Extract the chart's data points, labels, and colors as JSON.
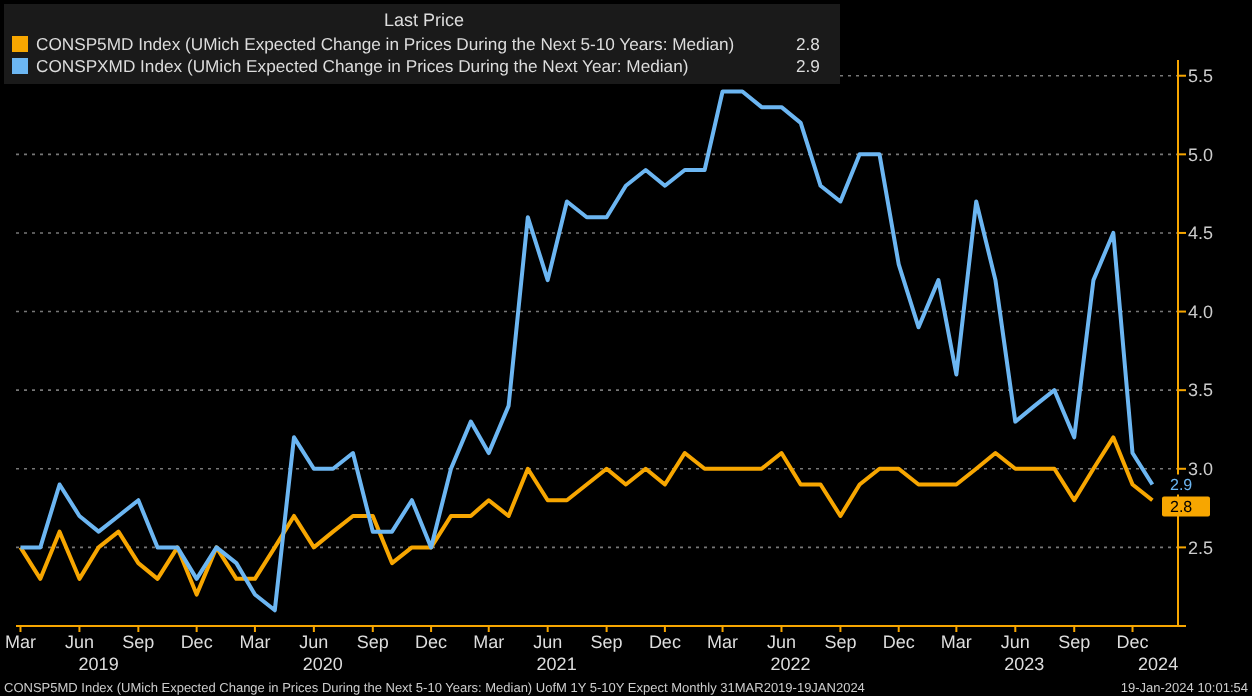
{
  "chart_data": {
    "type": "line",
    "legend_title": "Last Price",
    "legend": "top left",
    "grid": "y",
    "line_style": "solid",
    "marker": "none",
    "x": [
      "2019-03",
      "2019-04",
      "2019-05",
      "2019-06",
      "2019-07",
      "2019-08",
      "2019-09",
      "2019-10",
      "2019-11",
      "2019-12",
      "2020-01",
      "2020-02",
      "2020-03",
      "2020-04",
      "2020-05",
      "2020-06",
      "2020-07",
      "2020-08",
      "2020-09",
      "2020-10",
      "2020-11",
      "2020-12",
      "2021-01",
      "2021-02",
      "2021-03",
      "2021-04",
      "2021-05",
      "2021-06",
      "2021-07",
      "2021-08",
      "2021-09",
      "2021-10",
      "2021-11",
      "2021-12",
      "2022-01",
      "2022-02",
      "2022-03",
      "2022-04",
      "2022-05",
      "2022-06",
      "2022-07",
      "2022-08",
      "2022-09",
      "2022-10",
      "2022-11",
      "2022-12",
      "2023-01",
      "2023-02",
      "2023-03",
      "2023-04",
      "2023-05",
      "2023-06",
      "2023-07",
      "2023-08",
      "2023-09",
      "2023-10",
      "2023-11",
      "2023-12",
      "2024-01"
    ],
    "series": [
      {
        "name": "CONSP5MD Index (UMich Expected Change in Prices During the Next 5-10 Years: Median)",
        "color": "#f7a600",
        "values": [
          2.5,
          2.3,
          2.6,
          2.3,
          2.5,
          2.6,
          2.4,
          2.3,
          2.5,
          2.2,
          2.5,
          2.3,
          2.3,
          2.5,
          2.7,
          2.5,
          2.6,
          2.7,
          2.7,
          2.4,
          2.5,
          2.5,
          2.7,
          2.7,
          2.8,
          2.7,
          3.0,
          2.8,
          2.8,
          2.9,
          3.0,
          2.9,
          3.0,
          2.9,
          3.1,
          3.0,
          3.0,
          3.0,
          3.0,
          3.1,
          2.9,
          2.9,
          2.7,
          2.9,
          3.0,
          3.0,
          2.9,
          2.9,
          2.9,
          3.0,
          3.1,
          3.0,
          3.0,
          3.0,
          2.8,
          3.0,
          3.2,
          2.9,
          2.8
        ],
        "value_labels": [
          null,
          null,
          null,
          null,
          null,
          null,
          null,
          null,
          null,
          null,
          null,
          null,
          null,
          null,
          null,
          null,
          null,
          null,
          null,
          null,
          null,
          null,
          null,
          null,
          null,
          null,
          null,
          null,
          null,
          null,
          null,
          null,
          null,
          null,
          null,
          null,
          null,
          null,
          null,
          null,
          null,
          null,
          null,
          null,
          null,
          null,
          null,
          null,
          null,
          null,
          null,
          null,
          null,
          null,
          null,
          null,
          null,
          null,
          "2.8"
        ]
      },
      {
        "name": "CONSPXMD Index (UMich Expected Change in Prices During the Next Year: Median)",
        "color": "#6cb6f2",
        "values": [
          2.5,
          2.5,
          2.9,
          2.7,
          2.6,
          2.7,
          2.8,
          2.5,
          2.5,
          2.3,
          2.5,
          2.4,
          2.2,
          2.1,
          3.2,
          3.0,
          3.0,
          3.1,
          2.6,
          2.6,
          2.8,
          2.5,
          3.0,
          3.3,
          3.1,
          3.4,
          4.6,
          4.2,
          4.7,
          4.6,
          4.6,
          4.8,
          4.9,
          4.8,
          4.9,
          4.9,
          5.4,
          5.4,
          5.3,
          5.3,
          5.2,
          4.8,
          4.7,
          5.0,
          5.0,
          4.3,
          3.9,
          4.2,
          3.6,
          4.7,
          4.2,
          3.3,
          3.4,
          3.5,
          3.2,
          4.2,
          4.5,
          3.1,
          2.9
        ],
        "value_labels": [
          null,
          null,
          null,
          null,
          null,
          null,
          null,
          null,
          null,
          null,
          null,
          null,
          null,
          null,
          null,
          null,
          null,
          null,
          null,
          null,
          null,
          null,
          null,
          null,
          null,
          null,
          null,
          null,
          null,
          null,
          null,
          null,
          null,
          null,
          null,
          null,
          null,
          null,
          null,
          null,
          null,
          null,
          null,
          null,
          null,
          null,
          null,
          null,
          null,
          null,
          null,
          null,
          null,
          null,
          null,
          null,
          null,
          null,
          "2.9"
        ]
      }
    ],
    "xlim": [
      "2019-02-22",
      "2024-02-10"
    ],
    "xticks": [
      {
        "value": "2019-03",
        "label": "Mar"
      },
      {
        "value": "2019-06",
        "label": "Jun"
      },
      {
        "value": "2019-09",
        "label": "Sep"
      },
      {
        "value": "2019-12",
        "label": "Dec"
      },
      {
        "value": "2020-03",
        "label": "Mar"
      },
      {
        "value": "2020-06",
        "label": "Jun"
      },
      {
        "value": "2020-09",
        "label": "Sep"
      },
      {
        "value": "2020-12",
        "label": "Dec"
      },
      {
        "value": "2021-03",
        "label": "Mar"
      },
      {
        "value": "2021-06",
        "label": "Jun"
      },
      {
        "value": "2021-09",
        "label": "Sep"
      },
      {
        "value": "2021-12",
        "label": "Dec"
      },
      {
        "value": "2022-03",
        "label": "Mar"
      },
      {
        "value": "2022-06",
        "label": "Jun"
      },
      {
        "value": "2022-09",
        "label": "Sep"
      },
      {
        "value": "2022-12",
        "label": "Dec"
      },
      {
        "value": "2023-03",
        "label": "Mar"
      },
      {
        "value": "2023-06",
        "label": "Jun"
      },
      {
        "value": "2023-09",
        "label": "Sep"
      },
      {
        "value": "2023-12",
        "label": "Dec"
      }
    ],
    "x2lim": [
      "2019-02-22",
      "2024-02-10"
    ],
    "x2ticks": [
      {
        "value": "2019-07-01",
        "label": "2019"
      },
      {
        "value": "2020-06-15",
        "label": "2020"
      },
      {
        "value": "2021-06-15",
        "label": "2021"
      },
      {
        "value": "2022-06-15",
        "label": "2022"
      },
      {
        "value": "2023-06-15",
        "label": "2023"
      },
      {
        "value": "2024-01-10",
        "label": "2024"
      }
    ],
    "ylim": [
      2.0,
      5.6
    ],
    "yticks": [
      {
        "value": 2.0,
        "label": null
      },
      2.5,
      {
        "value": 3.0,
        "label": "3.0"
      },
      3.5,
      {
        "value": 4.0,
        "label": "4.0"
      },
      4.5,
      {
        "value": 5.0,
        "label": "5.0"
      },
      5.5
    ],
    "annotations": [
      "CONSP5MD Index (UMich Expected Change in Prices During the Next 5-10 Years: Median) UofM 1Y 5-10Y Expect  Monthly 31MAR2019-19JAN2024",
      "19-Jan-2024 10:01:54"
    ]
  }
}
